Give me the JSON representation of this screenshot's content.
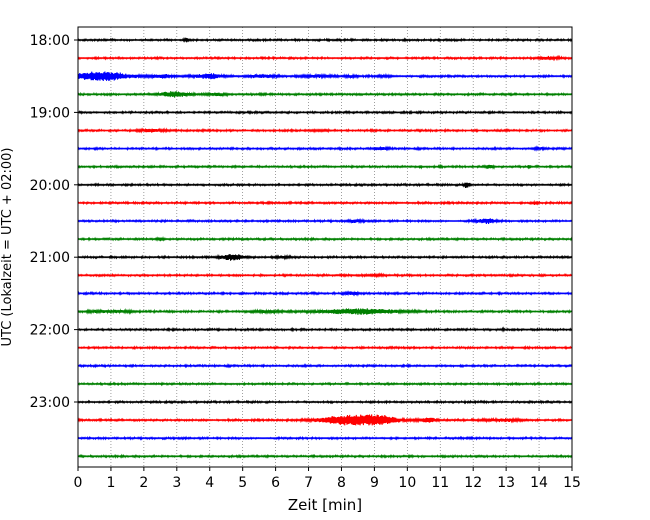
{
  "chart_data": {
    "type": "line",
    "title": "",
    "xlabel": "Zeit  [min]",
    "ylabel": "UTC (Lokalzeit = UTC + 02:00)",
    "xlim": [
      0,
      15
    ],
    "x_ticks": [
      0,
      1,
      2,
      3,
      4,
      5,
      6,
      7,
      8,
      9,
      10,
      11,
      12,
      13,
      14,
      15
    ],
    "x_tick_labels": [
      "0",
      "1",
      "2",
      "3",
      "4",
      "5",
      "6",
      "7",
      "8",
      "9",
      "10",
      "11",
      "12",
      "13",
      "14",
      "15"
    ],
    "y_tick_labels": [
      "18:00",
      "19:00",
      "20:00",
      "21:00",
      "22:00",
      "23:00"
    ],
    "grid": "vertical dotted",
    "trace_interval_min": 15,
    "series": [
      {
        "start": "18:00",
        "color": "#000000",
        "events": [
          {
            "t": 3.3,
            "amp": 0.9,
            "dur": 0.08
          }
        ]
      },
      {
        "start": "18:15",
        "color": "#ff0000",
        "events": [
          {
            "t": 14.3,
            "amp": 0.5,
            "dur": 0.4
          }
        ]
      },
      {
        "start": "18:30",
        "color": "#0000ff",
        "events": [
          {
            "t": 0.7,
            "amp": 1.6,
            "dur": 1.2
          },
          {
            "t": 2.6,
            "amp": 0.6,
            "dur": 0.5
          },
          {
            "t": 4.0,
            "amp": 0.8,
            "dur": 0.6
          },
          {
            "t": 5.6,
            "amp": 0.5,
            "dur": 0.6
          },
          {
            "t": 7.2,
            "amp": 0.4,
            "dur": 0.6
          },
          {
            "t": 8.3,
            "amp": 0.3,
            "dur": 0.3
          },
          {
            "t": 9.3,
            "amp": 0.2,
            "dur": 0.4
          }
        ]
      },
      {
        "start": "18:45",
        "color": "#008000",
        "events": [
          {
            "t": 2.9,
            "amp": 0.9,
            "dur": 0.6
          },
          {
            "t": 4.2,
            "amp": 0.5,
            "dur": 0.4
          }
        ]
      },
      {
        "start": "19:00",
        "color": "#000000",
        "events": []
      },
      {
        "start": "19:15",
        "color": "#ff0000",
        "events": [
          {
            "t": 2.2,
            "amp": 0.5,
            "dur": 0.5
          },
          {
            "t": 7.3,
            "amp": 0.15,
            "dur": 0.4
          }
        ]
      },
      {
        "start": "19:30",
        "color": "#0000ff",
        "events": [
          {
            "t": 9.2,
            "amp": 0.4,
            "dur": 0.3
          },
          {
            "t": 14.0,
            "amp": 0.3,
            "dur": 0.25
          }
        ]
      },
      {
        "start": "19:45",
        "color": "#008000",
        "events": [
          {
            "t": 10.4,
            "amp": 0.5,
            "dur": 0.05
          },
          {
            "t": 11.0,
            "amp": 0.4,
            "dur": 0.05
          },
          {
            "t": 12.5,
            "amp": 0.6,
            "dur": 0.15
          },
          {
            "t": 13.7,
            "amp": 0.8,
            "dur": 0.05
          }
        ]
      },
      {
        "start": "20:00",
        "color": "#000000",
        "events": [
          {
            "t": 11.8,
            "amp": 1.0,
            "dur": 0.12
          }
        ]
      },
      {
        "start": "20:15",
        "color": "#ff0000",
        "events": [
          {
            "t": 13.9,
            "amp": 0.6,
            "dur": 0.08
          }
        ]
      },
      {
        "start": "20:30",
        "color": "#0000ff",
        "events": [
          {
            "t": 8.4,
            "amp": 0.4,
            "dur": 0.3
          },
          {
            "t": 12.4,
            "amp": 0.8,
            "dur": 0.4
          }
        ]
      },
      {
        "start": "20:45",
        "color": "#008000",
        "events": [
          {
            "t": 2.5,
            "amp": 0.6,
            "dur": 0.15
          }
        ]
      },
      {
        "start": "21:00",
        "color": "#000000",
        "events": [
          {
            "t": 4.7,
            "amp": 1.0,
            "dur": 0.5
          },
          {
            "t": 6.2,
            "amp": 0.4,
            "dur": 0.3
          }
        ]
      },
      {
        "start": "21:15",
        "color": "#ff0000",
        "events": [
          {
            "t": 9.0,
            "amp": 0.15,
            "dur": 0.5
          }
        ]
      },
      {
        "start": "21:30",
        "color": "#0000ff",
        "events": [
          {
            "t": 8.3,
            "amp": 0.4,
            "dur": 0.3
          }
        ]
      },
      {
        "start": "21:45",
        "color": "#008000",
        "events": [
          {
            "t": 1.0,
            "amp": 0.4,
            "dur": 0.8
          },
          {
            "t": 5.7,
            "amp": 0.3,
            "dur": 0.6
          },
          {
            "t": 8.6,
            "amp": 0.9,
            "dur": 1.6
          }
        ]
      },
      {
        "start": "22:00",
        "color": "#000000",
        "events": [
          {
            "t": 2.9,
            "amp": 0.3,
            "dur": 0.05
          },
          {
            "t": 6.5,
            "amp": 0.3,
            "dur": 0.05
          },
          {
            "t": 12.9,
            "amp": 0.3,
            "dur": 0.05
          }
        ]
      },
      {
        "start": "22:15",
        "color": "#ff0000",
        "events": []
      },
      {
        "start": "22:30",
        "color": "#0000ff",
        "events": []
      },
      {
        "start": "22:45",
        "color": "#008000",
        "events": []
      },
      {
        "start": "23:00",
        "color": "#000000",
        "events": []
      },
      {
        "start": "23:15",
        "color": "#ff0000",
        "events": [
          {
            "t": 8.2,
            "amp": 1.6,
            "dur": 1.2
          },
          {
            "t": 9.2,
            "amp": 1.3,
            "dur": 0.8
          },
          {
            "t": 10.6,
            "amp": 0.7,
            "dur": 0.4
          },
          {
            "t": 12.9,
            "amp": 0.4,
            "dur": 0.8
          }
        ]
      },
      {
        "start": "23:30",
        "color": "#0000ff",
        "events": []
      },
      {
        "start": "23:45",
        "color": "#008000",
        "events": []
      }
    ]
  }
}
